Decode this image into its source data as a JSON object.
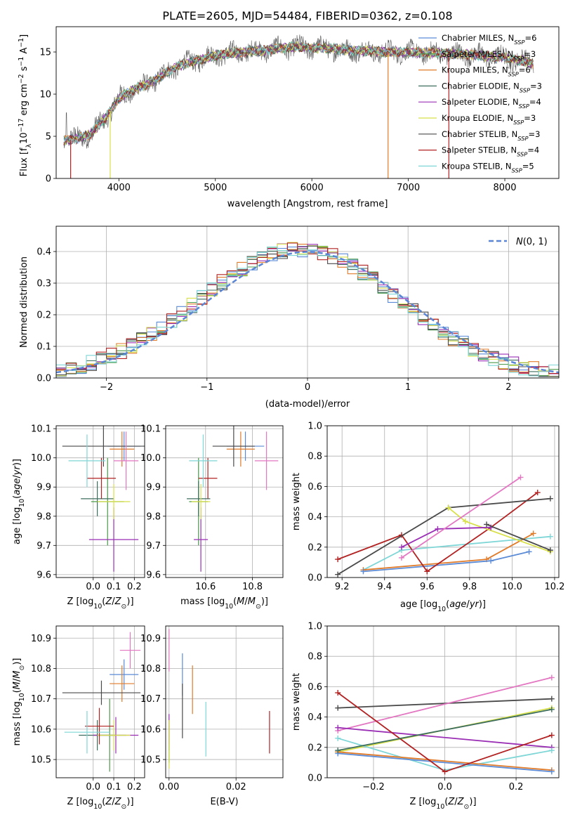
{
  "figure_title": "PLATE=2605, MJD=54484, FIBERID=0362, z=0.108",
  "colors": {
    "grid": "#b0b0b0",
    "gaussian": "#5b86d6",
    "data_spectrum": "#5a5a5a"
  },
  "chart_data": [
    {
      "id": "spectrum",
      "type": "line",
      "xlabel": "wavelength [Angstrom, rest frame]",
      "ylabel": "Flux [f_λ 10^-17 erg cm^-2 s^-1 A^-1]",
      "xlim": [
        3350,
        8560
      ],
      "ylim": [
        0,
        18
      ],
      "xticks": [
        4000,
        5000,
        6000,
        7000,
        8000
      ],
      "yticks": [
        0,
        5,
        10,
        15
      ],
      "grid": false,
      "legend": "top-right",
      "continuum": {
        "x": [
          3430,
          3550,
          3700,
          3850,
          4000,
          4150,
          4300,
          4450,
          4600,
          4800,
          5000,
          5200,
          5400,
          5600,
          5800,
          6000,
          6200,
          6400,
          6600,
          6800,
          7000,
          7200,
          7400,
          7600,
          7800,
          8000,
          8200,
          8300
        ],
        "y": [
          4.5,
          4.7,
          5.2,
          7.0,
          9.5,
          10.5,
          11.2,
          12.2,
          13.3,
          14.0,
          14.6,
          14.9,
          15.1,
          15.3,
          15.6,
          15.5,
          15.4,
          15.2,
          15.1,
          15.0,
          15.0,
          14.9,
          14.8,
          14.7,
          14.5,
          14.3,
          13.9,
          13.6
        ]
      },
      "series": [
        {
          "name": "Chabrier MILES, N_SSP=6",
          "color": "#5b8bd6"
        },
        {
          "name": "Salpeter MILES, N_SSP=3",
          "color": "#4a9a4a"
        },
        {
          "name": "Kroupa MILES, N_SSP=6",
          "color": "#e07b2a"
        },
        {
          "name": "Chabrier ELODIE, N_SSP=3",
          "color": "#3e6e5e"
        },
        {
          "name": "Salpeter ELODIE, N_SSP=4",
          "color": "#9a2fb5"
        },
        {
          "name": "Kroupa ELODIE, N_SSP=3",
          "color": "#d8e04a"
        },
        {
          "name": "Chabrier STELIB, N_SSP=3",
          "color": "#4a4a4a"
        },
        {
          "name": "Salpeter STELIB, N_SSP=4",
          "color": "#b22222"
        },
        {
          "name": "Kroupa STELIB, N_SSP=5",
          "color": "#7fd6d6"
        }
      ],
      "legend_labels": [
        [
          "Chabrier MILES, N",
          "SSP",
          "=6"
        ],
        [
          "Salpeter MILES, N",
          "SSP",
          "=3"
        ],
        [
          "Kroupa MILES, N",
          "SSP",
          "=6"
        ],
        [
          "Chabrier ELODIE, N",
          "SSP",
          "=3"
        ],
        [
          "Salpeter ELODIE, N",
          "SSP",
          "=4"
        ],
        [
          "Kroupa ELODIE, N",
          "SSP",
          "=3"
        ],
        [
          "Chabrier STELIB, N",
          "SSP",
          "=3"
        ],
        [
          "Salpeter STELIB, N",
          "SSP",
          "=4"
        ],
        [
          "Kroupa STELIB, N",
          "SSP",
          "=5"
        ]
      ]
    },
    {
      "id": "residuals",
      "type": "area",
      "xlabel": "(data-model)/error",
      "ylabel": "Normed distribution",
      "xlim": [
        -2.5,
        2.5
      ],
      "ylim": [
        0,
        0.48
      ],
      "xticks": [
        -2,
        -1,
        0,
        1,
        2
      ],
      "yticks": [
        0.0,
        0.1,
        0.2,
        0.3,
        0.4
      ],
      "grid": true,
      "legend": "top-right",
      "gaussian_label": "N(0,1)",
      "bin_width": 0.1
    },
    {
      "id": "age_vs_Z",
      "type": "scatter",
      "xlabel": "Z [log10(Z/Z⊙)]",
      "ylabel": "age [log10(age/yr)]",
      "xlim": [
        -0.18,
        0.25
      ],
      "ylim": [
        9.59,
        10.11
      ],
      "xticks": [
        0.0,
        0.1,
        0.2
      ],
      "yticks": [
        9.6,
        9.7,
        9.8,
        9.9,
        10.0,
        10.1
      ],
      "grid": true,
      "points": [
        {
          "model": "Chabrier MILES",
          "x": 0.15,
          "y": 10.04,
          "xerr": 0.08,
          "yerr": 0.05
        },
        {
          "model": "Salpeter MILES",
          "x": 0.07,
          "y": 9.85,
          "xerr": 0.08,
          "yerr": 0.15
        },
        {
          "model": "Kroupa MILES",
          "x": 0.14,
          "y": 10.03,
          "xerr": 0.06,
          "yerr": 0.06
        },
        {
          "model": "Chabrier ELODIE",
          "x": 0.02,
          "y": 9.86,
          "xerr": 0.08,
          "yerr": 0.06
        },
        {
          "model": "Salpeter ELODIE",
          "x": 0.1,
          "y": 9.72,
          "xerr": 0.12,
          "yerr": 0.11
        },
        {
          "model": "Kroupa ELODIE",
          "x": 0.1,
          "y": 9.85,
          "xerr": 0.08,
          "yerr": 0.06
        },
        {
          "model": "Chabrier STELIB",
          "x": 0.05,
          "y": 10.04,
          "xerr": 0.2,
          "yerr": 0.07
        },
        {
          "model": "Salpeter STELIB",
          "x": 0.04,
          "y": 9.93,
          "xerr": 0.07,
          "yerr": 0.07
        },
        {
          "model": "Kroupa STELIB",
          "x": -0.03,
          "y": 9.99,
          "xerr": 0.09,
          "yerr": 0.09
        },
        {
          "model": "Kroupa STELIB alt",
          "x": 0.16,
          "y": 9.99,
          "xerr": 0.06,
          "yerr": 0.1
        }
      ]
    },
    {
      "id": "age_vs_mass",
      "type": "scatter",
      "xlabel": "mass [log10(M/M⊙)]",
      "ylabel": "",
      "xlim": [
        10.43,
        10.93
      ],
      "ylim": [
        9.59,
        10.11
      ],
      "xticks": [
        10.6,
        10.8
      ],
      "yticks": [
        9.6,
        9.7,
        9.8,
        9.9,
        10.0,
        10.1
      ],
      "grid": true,
      "points": [
        {
          "model": "Chabrier MILES",
          "x": 10.77,
          "y": 10.04,
          "xerr": 0.08,
          "yerr": 0.05
        },
        {
          "model": "Salpeter MILES",
          "x": 10.57,
          "y": 9.85,
          "xerr": 0.04,
          "yerr": 0.15
        },
        {
          "model": "Kroupa MILES",
          "x": 10.75,
          "y": 10.03,
          "xerr": 0.06,
          "yerr": 0.06
        },
        {
          "model": "Chabrier ELODIE",
          "x": 10.57,
          "y": 9.86,
          "xerr": 0.05,
          "yerr": 0.06
        },
        {
          "model": "Salpeter ELODIE",
          "x": 10.58,
          "y": 9.72,
          "xerr": 0.03,
          "yerr": 0.11
        },
        {
          "model": "Kroupa ELODIE",
          "x": 10.58,
          "y": 9.85,
          "xerr": 0.04,
          "yerr": 0.06
        },
        {
          "model": "Chabrier STELIB",
          "x": 10.72,
          "y": 10.04,
          "xerr": 0.09,
          "yerr": 0.07
        },
        {
          "model": "Salpeter STELIB",
          "x": 10.61,
          "y": 9.93,
          "xerr": 0.04,
          "yerr": 0.07
        },
        {
          "model": "Kroupa STELIB",
          "x": 10.59,
          "y": 9.99,
          "xerr": 0.06,
          "yerr": 0.09
        },
        {
          "model": "Kroupa STELIB alt",
          "x": 10.86,
          "y": 9.99,
          "xerr": 0.05,
          "yerr": 0.1
        }
      ]
    },
    {
      "id": "weights_vs_age",
      "type": "line",
      "xlabel": "age [log10(age/yr)]",
      "ylabel": "mass weight",
      "xlim": [
        9.13,
        10.22
      ],
      "ylim": [
        0,
        1
      ],
      "xticks": [
        9.2,
        9.4,
        9.6,
        9.8,
        10.0,
        10.2
      ],
      "yticks": [
        0.0,
        0.2,
        0.4,
        0.6,
        0.8,
        1.0
      ],
      "grid": true,
      "series": [
        {
          "model": "Kroupa STELIB",
          "x": [
            9.3,
            9.48,
            10.18
          ],
          "y": [
            0.05,
            0.18,
            0.27
          ]
        },
        {
          "model": "Kroupa MILES",
          "x": [
            9.3,
            9.88,
            10.1
          ],
          "y": [
            0.05,
            0.12,
            0.29
          ]
        },
        {
          "model": "Chabrier MILES",
          "x": [
            9.3,
            9.9,
            10.08
          ],
          "y": [
            0.04,
            0.11,
            0.17
          ]
        },
        {
          "model": "Salpeter STELIB",
          "x": [
            9.18,
            9.48,
            9.6,
            9.9,
            10.12
          ],
          "y": [
            0.12,
            0.28,
            0.04,
            0.33,
            0.56
          ]
        },
        {
          "model": "Chabrier STELIB",
          "x": [
            9.18,
            9.7,
            10.18
          ],
          "y": [
            0.02,
            0.46,
            0.52
          ]
        },
        {
          "model": "Kroupa ELODIE",
          "x": [
            9.7,
            9.78,
            10.18
          ],
          "y": [
            0.46,
            0.37,
            0.17
          ]
        },
        {
          "model": "Salpeter ELODIE",
          "x": [
            9.48,
            9.65,
            9.9
          ],
          "y": [
            0.2,
            0.32,
            0.33
          ]
        },
        {
          "model": "Kroupa STELIB alt",
          "x": [
            9.48,
            10.04
          ],
          "y": [
            0.13,
            0.66
          ]
        },
        {
          "model": "Chabrier STELIB 2",
          "x": [
            9.88,
            10.18
          ],
          "y": [
            0.35,
            0.18
          ]
        }
      ]
    },
    {
      "id": "mass_vs_Z",
      "type": "scatter",
      "xlabel": "Z [log10(Z/Z⊙)]",
      "ylabel": "mass [log10(M/M⊙)]",
      "xlim": [
        -0.18,
        0.25
      ],
      "ylim": [
        10.44,
        10.94
      ],
      "xticks": [
        0.0,
        0.1,
        0.2
      ],
      "yticks": [
        10.5,
        10.6,
        10.7,
        10.8,
        10.9
      ],
      "grid": true,
      "points": [
        {
          "model": "Chabrier MILES",
          "x": 0.15,
          "y": 10.78,
          "xerr": 0.07,
          "yerr": 0.05
        },
        {
          "model": "Salpeter MILES",
          "x": 0.08,
          "y": 10.58,
          "xerr": 0.08,
          "yerr": 0.12
        },
        {
          "model": "Kroupa MILES",
          "x": 0.14,
          "y": 10.75,
          "xerr": 0.06,
          "yerr": 0.06
        },
        {
          "model": "Chabrier ELODIE",
          "x": 0.02,
          "y": 10.58,
          "xerr": 0.09,
          "yerr": 0.05
        },
        {
          "model": "Salpeter ELODIE",
          "x": 0.11,
          "y": 10.58,
          "xerr": 0.11,
          "yerr": 0.06
        },
        {
          "model": "Kroupa ELODIE",
          "x": 0.1,
          "y": 10.58,
          "xerr": 0.08,
          "yerr": 0.05
        },
        {
          "model": "Chabrier STELIB",
          "x": 0.04,
          "y": 10.72,
          "xerr": 0.19,
          "yerr": 0.04
        },
        {
          "model": "Salpeter STELIB",
          "x": 0.03,
          "y": 10.61,
          "xerr": 0.07,
          "yerr": 0.06
        },
        {
          "model": "Kroupa STELIB",
          "x": -0.03,
          "y": 10.59,
          "xerr": 0.11,
          "yerr": 0.07
        },
        {
          "model": "Kroupa STELIB alt",
          "x": 0.18,
          "y": 10.86,
          "xerr": 0.05,
          "yerr": 0.06
        }
      ]
    },
    {
      "id": "mass_vs_EBV",
      "type": "scatter",
      "xlabel": "E(B-V)",
      "ylabel": "",
      "xlim": [
        -0.001,
        0.034
      ],
      "ylim": [
        10.44,
        10.94
      ],
      "xticks": [
        0.0,
        0.02
      ],
      "yticks": [
        10.5,
        10.6,
        10.7,
        10.8,
        10.9
      ],
      "grid": true,
      "points": [
        {
          "model": "Chabrier MILES",
          "x": 0.004,
          "y": 10.78,
          "yerr": 0.07
        },
        {
          "model": "Salpeter MILES",
          "x": 0.0,
          "y": 10.55,
          "yerr": 0.06
        },
        {
          "model": "Kroupa MILES",
          "x": 0.007,
          "y": 10.73,
          "yerr": 0.08
        },
        {
          "model": "Chabrier ELODIE",
          "x": 0.0,
          "y": 10.58,
          "yerr": 0.05
        },
        {
          "model": "Salpeter ELODIE",
          "x": 0.0,
          "y": 10.6,
          "yerr": 0.05
        },
        {
          "model": "Kroupa ELODIE",
          "x": 0.0,
          "y": 10.55,
          "yerr": 0.08
        },
        {
          "model": "Chabrier STELIB",
          "x": 0.004,
          "y": 10.66,
          "yerr": 0.09
        },
        {
          "model": "Salpeter STELIB",
          "x": 0.03,
          "y": 10.59,
          "yerr": 0.07
        },
        {
          "model": "Kroupa STELIB",
          "x": 0.011,
          "y": 10.6,
          "yerr": 0.09
        },
        {
          "model": "Kroupa STELIB alt",
          "x": 0.0,
          "y": 10.86,
          "yerr": 0.07
        }
      ]
    },
    {
      "id": "weights_vs_Z",
      "type": "line",
      "xlabel": "Z [log10(Z/Z⊙)]",
      "ylabel": "mass weight",
      "xlim": [
        -0.33,
        0.32
      ],
      "ylim": [
        0,
        1
      ],
      "xticks": [
        -0.2,
        0.0,
        0.2
      ],
      "yticks": [
        0.0,
        0.2,
        0.4,
        0.6,
        0.8,
        1.0
      ],
      "grid": true,
      "series": [
        {
          "model": "Chabrier STELIB",
          "x": [
            -0.3,
            0.3
          ],
          "y": [
            0.46,
            0.52
          ]
        },
        {
          "model": "Kroupa STELIB alt",
          "x": [
            -0.3,
            0.3
          ],
          "y": [
            0.31,
            0.66
          ]
        },
        {
          "model": "Kroupa ELODIE",
          "x": [
            -0.3,
            0.3
          ],
          "y": [
            0.17,
            0.46
          ]
        },
        {
          "model": "Salpeter ELODIE",
          "x": [
            -0.3,
            0.3
          ],
          "y": [
            0.33,
            0.2
          ]
        },
        {
          "model": "Kroupa STELIB",
          "x": [
            -0.3,
            0.0,
            0.3
          ],
          "y": [
            0.26,
            0.05,
            0.18
          ]
        },
        {
          "model": "Kroupa MILES",
          "x": [
            -0.3,
            0.3
          ],
          "y": [
            0.17,
            0.05
          ]
        },
        {
          "model": "Chabrier MILES",
          "x": [
            -0.3,
            0.3
          ],
          "y": [
            0.16,
            0.04
          ]
        },
        {
          "model": "Salpeter STELIB",
          "x": [
            -0.3,
            0.0,
            0.3
          ],
          "y": [
            0.56,
            0.04,
            0.28
          ]
        },
        {
          "model": "Chabrier ELODIE",
          "x": [
            -0.3,
            0.3
          ],
          "y": [
            0.18,
            0.45
          ]
        }
      ]
    }
  ]
}
